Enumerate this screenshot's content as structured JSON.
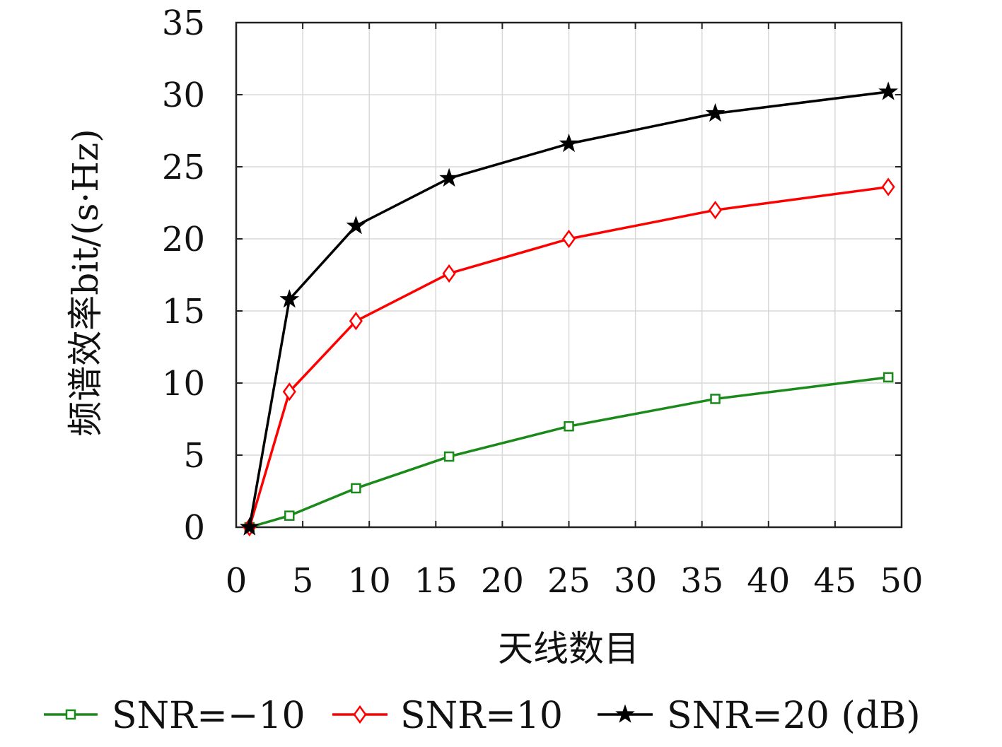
{
  "chart_data": {
    "type": "line",
    "xlabel": "天线数目",
    "ylabel": "频谱效率bit/(s·Hz)",
    "xlim": [
      0,
      50
    ],
    "ylim": [
      0,
      35
    ],
    "xticks": [
      0,
      5,
      10,
      15,
      20,
      25,
      30,
      35,
      40,
      45,
      50
    ],
    "yticks": [
      0,
      5,
      10,
      15,
      20,
      25,
      30,
      35
    ],
    "grid": true,
    "legend_position": "bottom",
    "series": [
      {
        "name": "SNR=−10",
        "color": "#1a8a1a",
        "marker": "square",
        "x": [
          1,
          4,
          9,
          16,
          25,
          36,
          49
        ],
        "y": [
          0,
          0.8,
          2.7,
          4.9,
          7.0,
          8.9,
          10.4
        ]
      },
      {
        "name": "SNR=10",
        "color": "#ff0000",
        "marker": "diamond",
        "x": [
          1,
          4,
          9,
          16,
          25,
          36,
          49
        ],
        "y": [
          0,
          9.4,
          14.3,
          17.6,
          20.0,
          22.0,
          23.6
        ]
      },
      {
        "name": "SNR=20 (dB)",
        "color": "#000000",
        "marker": "star",
        "x": [
          1,
          4,
          9,
          16,
          25,
          36,
          49
        ],
        "y": [
          0,
          15.8,
          20.9,
          24.2,
          26.6,
          28.7,
          30.2
        ]
      }
    ]
  }
}
